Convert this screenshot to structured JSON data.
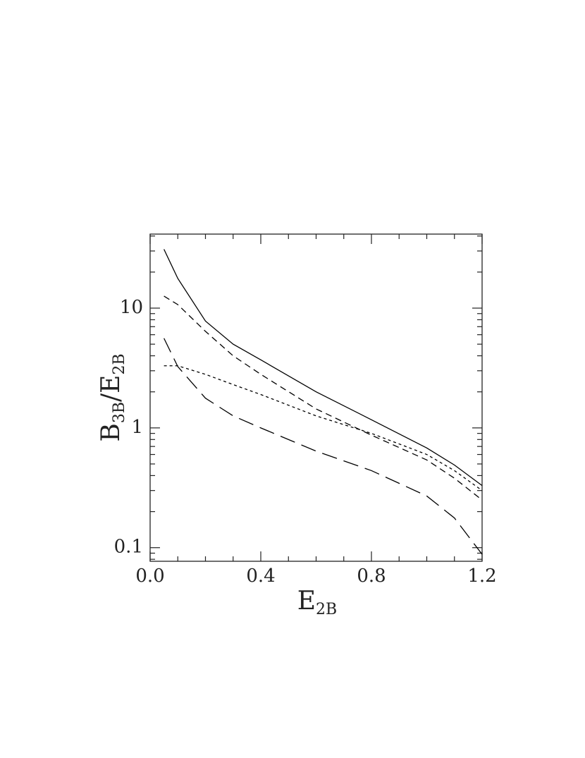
{
  "chart_data": {
    "type": "line",
    "x_label": {
      "main": "E",
      "sub": "2B"
    },
    "y_label": {
      "parts": [
        "B",
        "3B",
        "/E",
        "2B"
      ]
    },
    "x": [
      0.05,
      0.1,
      0.2,
      0.3,
      0.4,
      0.6,
      0.8,
      1.0,
      1.1,
      1.2
    ],
    "series": [
      {
        "color": "#000000",
        "dash": "none",
        "values": [
          31,
          17.7,
          7.8,
          5.0,
          3.7,
          2.0,
          1.17,
          0.68,
          0.49,
          0.33
        ]
      },
      {
        "color": "#000000",
        "dash": "9 6",
        "values": [
          12.6,
          10.7,
          6.4,
          4.0,
          2.8,
          1.44,
          0.87,
          0.54,
          0.38,
          0.25
        ]
      },
      {
        "color": "#000000",
        "dash": "4 4",
        "values": [
          3.3,
          3.3,
          2.8,
          2.3,
          1.9,
          1.26,
          0.9,
          0.6,
          0.44,
          0.3
        ]
      },
      {
        "color": "#000000",
        "dash": "22 10",
        "values": [
          5.6,
          3.25,
          1.77,
          1.26,
          1.0,
          0.64,
          0.44,
          0.27,
          0.177,
          0.088
        ]
      }
    ],
    "xlim": [
      0,
      1.2
    ],
    "ylim": [
      0.077,
      41.5
    ],
    "log_y": true,
    "xticks": [
      {
        "value": 0,
        "label": "0.0"
      },
      0.4,
      0.8,
      1.2
    ],
    "xminorticks": [
      0.1,
      0.2,
      0.3,
      0.5,
      0.6,
      0.7,
      0.9,
      1.0,
      1.1
    ],
    "yticks": [
      0.1,
      1,
      10
    ],
    "yminorticks": [
      0.08,
      0.09,
      0.2,
      0.3,
      0.4,
      0.5,
      0.6,
      0.7,
      0.8,
      0.9,
      2,
      3,
      4,
      5,
      6,
      7,
      8,
      9,
      20,
      30,
      40
    ]
  }
}
